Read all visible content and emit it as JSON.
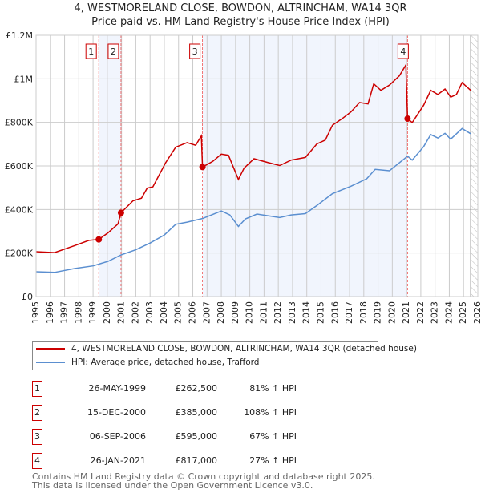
{
  "chart_data": {
    "type": "line",
    "title": "4, WESTMORELAND CLOSE, BOWDON, ALTRINCHAM, WA14 3QR",
    "subtitle": "Price paid vs. HM Land Registry's House Price Index (HPI)",
    "xlim": [
      1995,
      2026
    ],
    "ylim": [
      0,
      1200000
    ],
    "x_ticks": [
      "1995",
      "1996",
      "1997",
      "1998",
      "1999",
      "2000",
      "2001",
      "2002",
      "2003",
      "2004",
      "2005",
      "2006",
      "2007",
      "2008",
      "2009",
      "2010",
      "2011",
      "2012",
      "2013",
      "2014",
      "2015",
      "2016",
      "2017",
      "2018",
      "2019",
      "2020",
      "2021",
      "2022",
      "2023",
      "2024",
      "2025",
      "2026"
    ],
    "y_ticks": [
      {
        "v": 0,
        "label": "£0"
      },
      {
        "v": 200000,
        "label": "£200K"
      },
      {
        "v": 400000,
        "label": "£400K"
      },
      {
        "v": 600000,
        "label": "£600K"
      },
      {
        "v": 800000,
        "label": "£800K"
      },
      {
        "v": 1000000,
        "label": "£1M"
      },
      {
        "v": 1200000,
        "label": "£1.2M"
      }
    ],
    "grid": true,
    "shaded_ranges": [
      [
        1999.4,
        2000.96
      ],
      [
        2006.68,
        2021.07
      ]
    ],
    "hatched_from": 2025.5,
    "series": [
      {
        "name": "4, WESTMORELAND CLOSE, BOWDON, ALTRINCHAM, WA14 3QR (detached house)",
        "color": "#cc0000",
        "points": [
          [
            1995.0,
            206000
          ],
          [
            1996.3,
            202000
          ],
          [
            1997.7,
            234000
          ],
          [
            1998.7,
            258000
          ],
          [
            1999.4,
            262500
          ],
          [
            2000.05,
            293000
          ],
          [
            2000.75,
            334000
          ],
          [
            2000.96,
            385000
          ],
          [
            2001.8,
            440000
          ],
          [
            2002.4,
            452000
          ],
          [
            2002.8,
            498000
          ],
          [
            2003.2,
            504000
          ],
          [
            2004.1,
            615000
          ],
          [
            2004.8,
            686000
          ],
          [
            2005.6,
            707000
          ],
          [
            2006.2,
            695000
          ],
          [
            2006.6,
            738000
          ],
          [
            2006.68,
            595000
          ],
          [
            2007.4,
            621000
          ],
          [
            2008.0,
            654000
          ],
          [
            2008.5,
            649000
          ],
          [
            2009.2,
            538000
          ],
          [
            2009.6,
            590000
          ],
          [
            2010.3,
            633000
          ],
          [
            2011.3,
            615000
          ],
          [
            2012.1,
            602000
          ],
          [
            2012.9,
            627000
          ],
          [
            2013.9,
            639000
          ],
          [
            2014.7,
            701000
          ],
          [
            2015.3,
            719000
          ],
          [
            2015.8,
            787000
          ],
          [
            2016.5,
            818000
          ],
          [
            2017.1,
            848000
          ],
          [
            2017.7,
            891000
          ],
          [
            2018.3,
            885000
          ],
          [
            2018.7,
            977000
          ],
          [
            2019.2,
            947000
          ],
          [
            2019.8,
            971000
          ],
          [
            2020.5,
            1014000
          ],
          [
            2020.95,
            1063000
          ],
          [
            2021.07,
            817000
          ],
          [
            2021.4,
            799000
          ],
          [
            2022.2,
            879000
          ],
          [
            2022.7,
            947000
          ],
          [
            2023.2,
            928000
          ],
          [
            2023.7,
            953000
          ],
          [
            2024.1,
            916000
          ],
          [
            2024.5,
            928000
          ],
          [
            2024.9,
            983000
          ],
          [
            2025.5,
            947000
          ]
        ]
      },
      {
        "name": "HPI: Average price, detached house, Trafford",
        "color": "#5b8fd0",
        "points": [
          [
            1995.0,
            114000
          ],
          [
            1996.3,
            111000
          ],
          [
            1997.7,
            129000
          ],
          [
            1999.0,
            141000
          ],
          [
            2000.05,
            162000
          ],
          [
            2000.96,
            191000
          ],
          [
            2002.0,
            215000
          ],
          [
            2003.0,
            246000
          ],
          [
            2004.0,
            283000
          ],
          [
            2004.8,
            332000
          ],
          [
            2005.6,
            342000
          ],
          [
            2006.7,
            359000
          ],
          [
            2008.0,
            393000
          ],
          [
            2008.6,
            375000
          ],
          [
            2009.2,
            322000
          ],
          [
            2009.7,
            357000
          ],
          [
            2010.5,
            379000
          ],
          [
            2011.5,
            369000
          ],
          [
            2012.1,
            363000
          ],
          [
            2012.9,
            375000
          ],
          [
            2013.9,
            381000
          ],
          [
            2014.7,
            418000
          ],
          [
            2015.8,
            473000
          ],
          [
            2017.1,
            507000
          ],
          [
            2018.2,
            541000
          ],
          [
            2018.8,
            584000
          ],
          [
            2019.8,
            578000
          ],
          [
            2021.07,
            645000
          ],
          [
            2021.4,
            627000
          ],
          [
            2022.2,
            689000
          ],
          [
            2022.7,
            744000
          ],
          [
            2023.2,
            728000
          ],
          [
            2023.7,
            750000
          ],
          [
            2024.1,
            723000
          ],
          [
            2024.9,
            772000
          ],
          [
            2025.5,
            748000
          ]
        ]
      }
    ],
    "sales": [
      {
        "id": "1",
        "x": 1999.4,
        "price": 262500,
        "date": "26-MAY-1999",
        "price_label": "£262,500",
        "hpi": "81% ↑ HPI"
      },
      {
        "id": "2",
        "x": 2000.96,
        "price": 385000,
        "date": "15-DEC-2000",
        "price_label": "£385,000",
        "hpi": "108% ↑ HPI"
      },
      {
        "id": "3",
        "x": 2006.68,
        "price": 595000,
        "date": "06-SEP-2006",
        "price_label": "£595,000",
        "hpi": "67% ↑ HPI"
      },
      {
        "id": "4",
        "x": 2021.07,
        "price": 817000,
        "date": "26-JAN-2021",
        "price_label": "£817,000",
        "hpi": "27% ↑ HPI"
      }
    ],
    "legend": "below"
  },
  "footer": {
    "line1": "Contains HM Land Registry data © Crown copyright and database right 2025.",
    "line2": "This data is licensed under the Open Government Licence v3.0."
  }
}
